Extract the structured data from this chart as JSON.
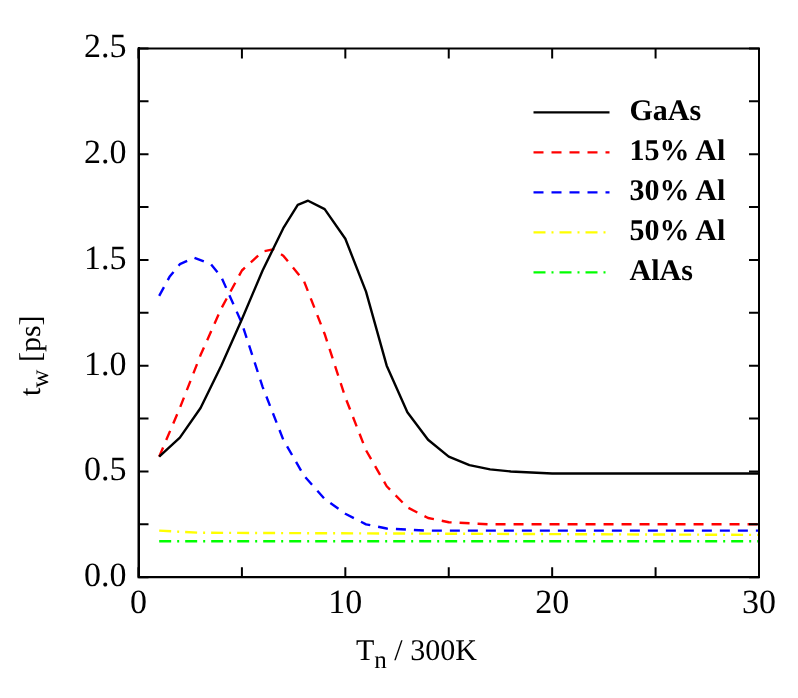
{
  "chart_data": {
    "type": "line",
    "xlabel": "T$_{n}$ / 300K",
    "ylabel": "t$_{w}$ [ps]",
    "xlim": [
      0,
      30
    ],
    "ylim": [
      0,
      2.5
    ],
    "xticks": [
      0,
      {
        "value": 5,
        "label": null
      },
      10,
      {
        "value": 15,
        "label": null
      },
      20,
      {
        "value": 25,
        "label": null
      },
      30
    ],
    "yticks": [
      {
        "value": 0,
        "label": "0.0"
      },
      {
        "value": 0.25,
        "label": null
      },
      {
        "value": 0.5,
        "label": "0.5"
      },
      {
        "value": 0.75,
        "label": null
      },
      {
        "value": 1,
        "label": "1.0"
      },
      {
        "value": 1.25,
        "label": null
      },
      {
        "value": 1.5,
        "label": "1.5"
      },
      {
        "value": 1.75,
        "label": null
      },
      {
        "value": 2,
        "label": "2.0"
      },
      {
        "value": 2.25,
        "label": null
      },
      {
        "value": 2.5,
        "label": "2.5"
      }
    ],
    "grid": false,
    "legend": "top right",
    "marker": "none",
    "series": [
      {
        "name": "GaAs",
        "color": "#000000",
        "line_style": "solid",
        "x": [
          1,
          2,
          3,
          4,
          5,
          6,
          7,
          7.7,
          8.2,
          9,
          10,
          11,
          12,
          13,
          14,
          15,
          16,
          17,
          18,
          20,
          30
        ],
        "values": [
          0.57,
          0.66,
          0.8,
          1.0,
          1.22,
          1.45,
          1.65,
          1.76,
          1.78,
          1.74,
          1.6,
          1.35,
          1.0,
          0.78,
          0.65,
          0.57,
          0.53,
          0.51,
          0.5,
          0.49,
          0.49
        ]
      },
      {
        "name": "15% Al",
        "color": "#ff0000",
        "line_style": "dashed",
        "x": [
          1,
          2,
          3,
          4,
          5,
          6,
          6.5,
          7,
          8,
          9,
          10,
          11,
          12,
          13,
          14,
          15,
          17,
          30
        ],
        "values": [
          0.57,
          0.8,
          1.05,
          1.27,
          1.45,
          1.54,
          1.55,
          1.52,
          1.4,
          1.15,
          0.85,
          0.6,
          0.43,
          0.33,
          0.28,
          0.26,
          0.25,
          0.25
        ]
      },
      {
        "name": "30% Al",
        "color": "#0000ff",
        "line_style": "dashed",
        "x": [
          1,
          1.5,
          2,
          2.7,
          3.5,
          4,
          5,
          6,
          7,
          8,
          9,
          10,
          11,
          12,
          14,
          30
        ],
        "values": [
          1.33,
          1.42,
          1.48,
          1.51,
          1.48,
          1.42,
          1.2,
          0.9,
          0.65,
          0.48,
          0.37,
          0.3,
          0.25,
          0.23,
          0.22,
          0.22
        ]
      },
      {
        "name": "50% Al",
        "color": "#ffff00",
        "line_style": "dashdot",
        "x": [
          1,
          3,
          30
        ],
        "values": [
          0.22,
          0.21,
          0.2
        ]
      },
      {
        "name": "AlAs",
        "color": "#00ff00",
        "line_style": "dashdot",
        "x": [
          1,
          30
        ],
        "values": [
          0.17,
          0.17
        ]
      }
    ]
  }
}
